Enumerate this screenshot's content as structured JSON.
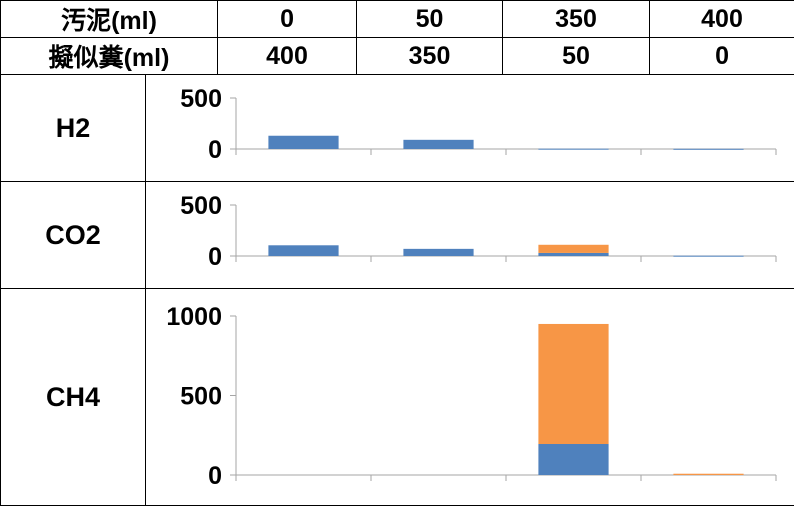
{
  "header": {
    "row1": {
      "label": "汚泥(ml)",
      "values": [
        "0",
        "50",
        "350",
        "400"
      ]
    },
    "row2": {
      "label": "擬似糞(ml)",
      "values": [
        "400",
        "350",
        "50",
        "0"
      ]
    }
  },
  "colors": {
    "series1": "#4F81BD",
    "series2": "#F79646",
    "axis": "#A6A6A6"
  },
  "chart_data": [
    {
      "type": "bar",
      "row_label": "H2",
      "stacked": true,
      "categories": [
        "0",
        "50",
        "350",
        "400"
      ],
      "ylim": [
        0,
        500
      ],
      "yticks": [
        "500",
        "0"
      ],
      "series": [
        {
          "values": [
            130,
            90,
            3,
            2
          ]
        },
        {
          "values": [
            0,
            0,
            0,
            0
          ]
        }
      ]
    },
    {
      "type": "bar",
      "row_label": "CO2",
      "stacked": true,
      "categories": [
        "0",
        "50",
        "350",
        "400"
      ],
      "ylim": [
        0,
        500
      ],
      "yticks": [
        "500",
        "0"
      ],
      "series": [
        {
          "values": [
            105,
            70,
            30,
            3
          ]
        },
        {
          "values": [
            0,
            0,
            80,
            0
          ]
        }
      ]
    },
    {
      "type": "bar",
      "row_label": "CH4",
      "stacked": true,
      "categories": [
        "0",
        "50",
        "350",
        "400"
      ],
      "ylim": [
        0,
        1000
      ],
      "yticks": [
        "1000",
        "500",
        "0"
      ],
      "series": [
        {
          "values": [
            0,
            0,
            195,
            0
          ]
        },
        {
          "values": [
            0,
            0,
            755,
            8
          ]
        }
      ]
    }
  ]
}
